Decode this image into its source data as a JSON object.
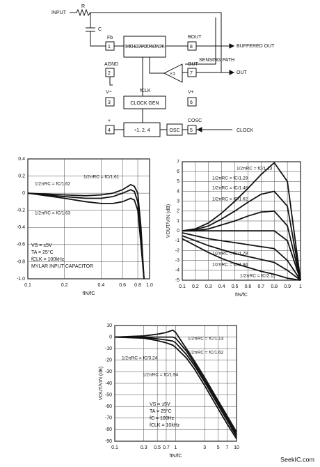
{
  "diagram": {
    "labels": [
      "INPUT",
      "R",
      "C",
      "Fb",
      "1",
      "AGND",
      "2",
      "SWITCHED CAPACITOR NETWORK",
      "BOUT",
      "8",
      "BUFFERED OUT",
      "SENSING PATH",
      "OUT",
      "7",
      "OUT",
      "×1",
      "fCLK",
      "CLOCK GEN",
      "V−",
      "3",
      "V+",
      "6",
      "+",
      "4",
      "÷1, 2, 4",
      "OSC",
      "COSC",
      "5",
      "CLOCK"
    ]
  },
  "footer": "SeekIC.com",
  "chart_data": [
    {
      "type": "line",
      "xlabel": "fIN/fC",
      "log_x": true,
      "grid": true,
      "x": [
        0.1,
        0.2,
        0.3,
        0.4,
        0.5,
        0.6,
        0.7,
        0.75,
        0.8,
        0.85,
        0.9
      ],
      "xlim": [
        0.1,
        1
      ],
      "xticks": [
        0.1,
        0.2,
        0.4,
        0.6,
        0.8,
        {
          "value": 1,
          "label": "1.0"
        }
      ],
      "ylim": [
        -1,
        0.4
      ],
      "yticks": [
        0.4,
        0.2,
        0,
        -0.2,
        -0.4,
        -0.6,
        -0.8,
        {
          "value": -1,
          "label": "-1.0"
        }
      ],
      "series": [
        {
          "name": "1/2πRC = fC/1.61",
          "color": "#111",
          "values": [
            0,
            -0.02,
            -0.03,
            -0.02,
            0,
            0.04,
            0.1,
            0.08,
            0,
            -0.4,
            -1
          ]
        },
        {
          "name": "1/2πRC = fC/1.62",
          "color": "#111",
          "values": [
            0,
            -0.04,
            -0.06,
            -0.06,
            -0.04,
            0,
            0.04,
            0.02,
            -0.1,
            -0.5,
            -1
          ]
        },
        {
          "name": "1/2πRC = fC/1.63",
          "color": "#111",
          "values": [
            0,
            -0.06,
            -0.1,
            -0.12,
            -0.12,
            -0.1,
            -0.06,
            -0.08,
            -0.2,
            -0.6,
            -1
          ]
        }
      ],
      "annotations": [
        "VS = ±5V",
        "TA = 25°C",
        "fCLK = 100kHz",
        "MYLAR INPUT CAPACITOR"
      ]
    },
    {
      "type": "line",
      "xlabel": "fIN/fC",
      "ylabel": "VOUT/VIN (dB)",
      "log_x": false,
      "grid": true,
      "x": [
        0.1,
        0.2,
        0.3,
        0.4,
        0.5,
        0.6,
        0.7,
        0.8,
        0.9,
        1
      ],
      "xlim": [
        0.1,
        1
      ],
      "xticks": [
        0.1,
        0.2,
        0.3,
        0.4,
        0.5,
        0.6,
        0.7,
        0.8,
        0.9,
        1
      ],
      "ylim": [
        -5,
        7
      ],
      "yticks": [
        7,
        6,
        5,
        4,
        3,
        2,
        1,
        0,
        -1,
        -2,
        -3,
        -4,
        -5
      ],
      "series": [
        {
          "name": "1/2πRC = fC/1.13",
          "color": "#111",
          "values": [
            0,
            0.2,
            0.8,
            1.8,
            3,
            4.3,
            5.7,
            6.9,
            5,
            -5
          ]
        },
        {
          "name": "1/2πRC = fC/1.29",
          "color": "#111",
          "values": [
            0,
            0.1,
            0.5,
            1.2,
            2,
            2.9,
            3.7,
            4,
            2.5,
            -5
          ]
        },
        {
          "name": "1/2πRC = fC/1.46",
          "color": "#111",
          "values": [
            0,
            0,
            0.2,
            0.6,
            1,
            1.5,
            1.9,
            2,
            0.5,
            -5
          ]
        },
        {
          "name": "1/2πRC = fC/1.62",
          "color": "#111",
          "values": [
            0,
            0,
            0,
            0,
            0,
            0,
            0,
            0,
            -1,
            -5
          ]
        },
        {
          "name": "1/2πRC = fC/1.78",
          "color": "#111",
          "values": [
            -0.2,
            -0.5,
            -0.8,
            -1,
            -1.2,
            -1.4,
            -1.6,
            -1.8,
            -3,
            -5
          ]
        },
        {
          "name": "1/2πRC = fC/1.94",
          "color": "#111",
          "values": [
            -0.5,
            -1,
            -1.5,
            -1.9,
            -2.3,
            -2.6,
            -2.9,
            -3.2,
            -4,
            -5
          ]
        },
        {
          "name": "1/2πRC = fC/2.11",
          "color": "#111",
          "values": [
            -0.8,
            -1.5,
            -2.2,
            -2.8,
            -3.3,
            -3.7,
            -4.1,
            -4.4,
            -4.8,
            -5
          ]
        }
      ]
    },
    {
      "type": "line",
      "xlabel": "fIN/fC",
      "ylabel": "VOUT/VIN (dB)",
      "log_x": true,
      "grid": true,
      "x": [
        0.1,
        0.3,
        0.5,
        0.7,
        0.9,
        1,
        1.5,
        2,
        3,
        5,
        7,
        10
      ],
      "xlim": [
        0.1,
        10
      ],
      "xticks": [
        0.1,
        0.3,
        0.5,
        0.7,
        1,
        3,
        5,
        7,
        10
      ],
      "ylim": [
        -90,
        10
      ],
      "yticks": [
        10,
        0,
        -10,
        -20,
        -30,
        -40,
        -50,
        -60,
        -70,
        -80,
        -90
      ],
      "series": [
        {
          "name": "1/2πRC = fC/1.13",
          "color": "#111",
          "values": [
            0,
            1,
            2.5,
            4,
            6,
            4,
            -10,
            -20,
            -35,
            -55,
            -68,
            -82
          ]
        },
        {
          "name": "1/2πRC = fC/1.62",
          "color": "#111",
          "values": [
            0,
            0,
            0,
            0,
            0,
            -1,
            -12,
            -22,
            -37,
            -57,
            -70,
            -84
          ]
        },
        {
          "name": "1/2πRC = fC/3.24",
          "color": "#111",
          "values": [
            0,
            -1,
            -3,
            -5,
            -7,
            -9,
            -18,
            -27,
            -42,
            -62,
            -75,
            -88
          ]
        },
        {
          "name": "1/2πRC = fC/1.94",
          "color": "#111",
          "values": [
            0,
            -0.5,
            -1.5,
            -2.5,
            -3.5,
            -5,
            -15,
            -24,
            -39,
            -59,
            -72,
            -86
          ]
        }
      ],
      "annotations": [
        "VS = ±5V",
        "TA = 25°C",
        "fC = 100Hz",
        "fCLK = 10kHz"
      ]
    }
  ]
}
